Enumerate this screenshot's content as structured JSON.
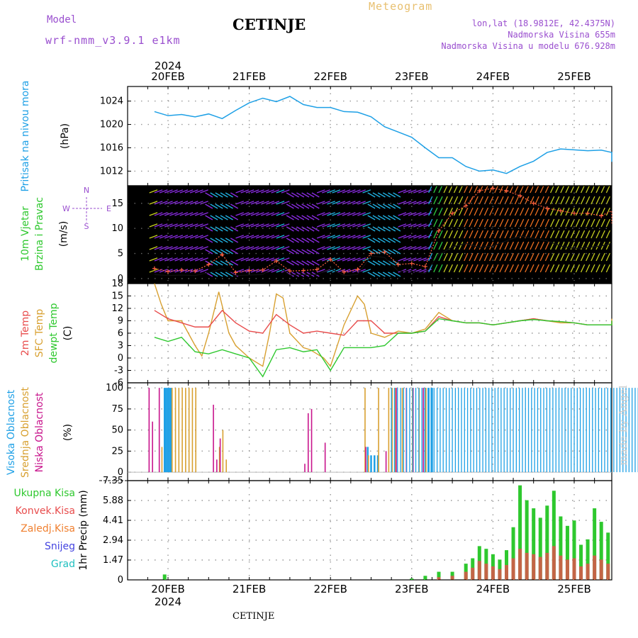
{
  "header": {
    "model_label": "Model",
    "model_name": "wrf-nmm_v3.9.1 e1km",
    "station": "CETINJE",
    "meteogram": "Meteogram",
    "lonlat": "lon,lat (18.9812E, 42.4375N)",
    "altitude": "Nadmorska Visina 655m",
    "model_altitude": "Nadmorska Visina u modelu 676.928m",
    "watermark": "made by Angel",
    "footer_station": "CETINJE"
  },
  "colors": {
    "pressure": "#1ea0e6",
    "temp2m": "#e84c4c",
    "sfc_temp": "#d8a030",
    "dewpt": "#2ec82e",
    "high_cloud": "#1ea0e6",
    "mid_cloud": "#d8a030",
    "low_cloud": "#c8148c",
    "total_precip": "#2ec82e",
    "conv_precip": "#e84c4c",
    "frozen": "#f08030",
    "snow": "#4444e0",
    "graupel": "#20c0c0",
    "purple_text": "#9a4fcf"
  },
  "time_axis": {
    "year": "2024",
    "dates": [
      "20FEB",
      "21FEB",
      "22FEB",
      "23FEB",
      "24FEB",
      "25FEB"
    ]
  },
  "panels": {
    "pressure": {
      "title": "Pritisak na nivou mora",
      "unit": "(hPa)",
      "ticks": [
        "1024",
        "1020",
        "1016",
        "1012"
      ]
    },
    "wind": {
      "title1": "10m Vjetar",
      "title2": "Brzina i Pravac",
      "unit": "(m/s)",
      "ticks": [
        "15",
        "10",
        "5",
        "0"
      ],
      "compass_n": "N",
      "compass_w": "W",
      "compass_e": "E",
      "compass_s": "S"
    },
    "temp": {
      "title1": "2m Temp",
      "title2": "SFC Temp",
      "title3": "dewpt Temp",
      "unit": "(C)",
      "ticks": [
        "18",
        "15",
        "12",
        "9",
        "6",
        "3",
        "0",
        "-3",
        "-6"
      ]
    },
    "cloud": {
      "title1": "Visoka Oblacnost",
      "title2": "Srednja Oblacnost",
      "title3": "Niska Oblacnost",
      "unit": "(%)",
      "ticks": [
        "100",
        "75",
        "50",
        "25",
        "0"
      ]
    },
    "precip": {
      "labels": [
        "Ukupna Kisa",
        "Konvek.Kisa",
        "Zaledj.Kisa",
        "Snijeg",
        "Grad"
      ],
      "unit": "1hr Precip (mm)",
      "ticks": [
        "7.35",
        "5.88",
        "4.41",
        "2.94",
        "1.47",
        "0"
      ]
    }
  },
  "chart_data": [
    {
      "type": "line",
      "title": "Pritisak na nivou mora",
      "ylabel": "(hPa)",
      "ylim": [
        1009.5,
        1026.5
      ],
      "x_unit": "hours since 20FEB 00UTC",
      "series": [
        {
          "name": "Pritisak na nivou mora",
          "x": [
            -4,
            0,
            4,
            8,
            12,
            16,
            20,
            24,
            28,
            32,
            36,
            40,
            44,
            48,
            52,
            56,
            60,
            64,
            68,
            72,
            76,
            80,
            84,
            88,
            92,
            96,
            100,
            104,
            108,
            112,
            116,
            124,
            128,
            132,
            136,
            140
          ],
          "y": [
            1022.2,
            1021.5,
            1021.7,
            1021.3,
            1021.8,
            1021.0,
            1022.4,
            1023.7,
            1024.5,
            1023.9,
            1024.8,
            1023.4,
            1022.9,
            1022.9,
            1022.2,
            1022.1,
            1021.3,
            1019.6,
            1018.7,
            1017.8,
            1016.0,
            1014.3,
            1014.3,
            1012.8,
            1012.0,
            1012.2,
            1011.6,
            1012.8,
            1013.7,
            1015.2,
            1015.8,
            1015.5,
            1015.6,
            1015.2,
            1014.6,
            1013.6
          ]
        }
      ],
      "grid": true
    },
    {
      "type": "line",
      "title": "10m Vjetar Brzina i Pravac",
      "ylabel": "(m/s)",
      "ylim": [
        -1,
        18.5
      ],
      "x_unit": "hours since 20FEB 00UTC",
      "series": [
        {
          "name": "speed",
          "x": [
            -4,
            0,
            4,
            8,
            12,
            16,
            20,
            24,
            28,
            32,
            36,
            40,
            44,
            48,
            52,
            56,
            60,
            64,
            68,
            72,
            76,
            80,
            84,
            88,
            92,
            96,
            100,
            104,
            108,
            112,
            116,
            120,
            124,
            128,
            132,
            136,
            140
          ],
          "y": [
            2.0,
            1.4,
            1.7,
            1.5,
            2.8,
            4.8,
            1.2,
            1.6,
            1.7,
            3.5,
            1.5,
            1.6,
            1.8,
            3.8,
            1.3,
            1.8,
            5.0,
            5.3,
            2.8,
            3.0,
            2.4,
            9.5,
            13.0,
            14.5,
            17.5,
            18.0,
            17.5,
            16.5,
            15.0,
            14.0,
            13.5,
            13.0,
            13.0,
            12.5,
            13.5,
            13.5,
            11.0
          ]
        },
        {
          "name": "gust",
          "x": [
            -4,
            0,
            4,
            8,
            12,
            16,
            20,
            24,
            28,
            32,
            36,
            40,
            44,
            48,
            52,
            56,
            60,
            64,
            68,
            72,
            76,
            80,
            84,
            88,
            92,
            96,
            100,
            104,
            108,
            112,
            116,
            120,
            124,
            128,
            132,
            136,
            140
          ],
          "y": [
            0.8,
            0.6,
            0.7,
            0.6,
            1.2,
            2.0,
            0.6,
            0.7,
            0.8,
            2.6,
            0.7,
            0.8,
            0.8,
            2.0,
            0.6,
            0.8,
            4.5,
            4.2,
            1.5,
            1.5,
            1.0,
            4.8,
            6.3,
            7.0,
            6.2,
            6.5,
            7.5,
            8.5,
            8.0,
            7.5,
            6.5,
            6.0,
            6.2,
            6.5,
            7.0,
            5.5,
            4.5
          ]
        }
      ],
      "grid": true
    },
    {
      "type": "line",
      "title": "2m Temp / SFC Temp / dewpt Temp",
      "ylabel": "(C)",
      "ylim": [
        -6,
        18
      ],
      "x_unit": "hours since 20FEB 00UTC",
      "series": [
        {
          "name": "2m Temp",
          "x": [
            -4,
            0,
            4,
            8,
            12,
            16,
            20,
            24,
            28,
            32,
            36,
            40,
            44,
            48,
            52,
            56,
            60,
            64,
            68,
            72,
            76,
            80,
            84,
            88,
            92,
            96,
            100,
            104,
            108,
            112,
            116,
            120,
            124,
            128,
            132,
            136,
            140
          ],
          "y": [
            11.5,
            9.5,
            8.5,
            7.5,
            7.5,
            11.5,
            8.5,
            6.5,
            6.0,
            10.5,
            8.0,
            6.0,
            6.5,
            6.0,
            5.5,
            9.0,
            9.0,
            6.0,
            6.0,
            6.0,
            6.5,
            10.0,
            9.0,
            8.5,
            8.5,
            8.0,
            8.5,
            9.0,
            9.5,
            9.0,
            8.8,
            8.5,
            8.0,
            8.0,
            8.0,
            8.0,
            9.0
          ]
        },
        {
          "name": "SFC Temp",
          "x": [
            -4,
            -2,
            0,
            4,
            8,
            10,
            12,
            15,
            18,
            20,
            24,
            28,
            30,
            32,
            34,
            36,
            40,
            42,
            44,
            46,
            48,
            52,
            56,
            58,
            60,
            62,
            64,
            68,
            72,
            76,
            80,
            84,
            88,
            92,
            96,
            100,
            104,
            108,
            112,
            116,
            120,
            124,
            128,
            132,
            136,
            140
          ],
          "y": [
            18.0,
            13.0,
            9.0,
            9.0,
            3.0,
            0.5,
            6.0,
            16.0,
            6.0,
            3.0,
            0.0,
            -2.0,
            6.0,
            15.5,
            14.5,
            6.0,
            2.5,
            2.0,
            1.0,
            0.0,
            -2.0,
            8.0,
            15.0,
            13.0,
            6.0,
            5.5,
            5.0,
            6.5,
            6.0,
            7.0,
            11.0,
            9.0,
            8.5,
            8.5,
            8.0,
            8.5,
            9.0,
            9.5,
            9.0,
            8.5,
            8.5,
            8.0,
            8.0,
            8.0,
            8.0,
            9.5
          ]
        },
        {
          "name": "dewpt Temp",
          "x": [
            -4,
            0,
            4,
            8,
            12,
            16,
            20,
            24,
            28,
            32,
            36,
            40,
            44,
            48,
            52,
            56,
            60,
            64,
            68,
            72,
            76,
            80,
            84,
            88,
            92,
            96,
            100,
            104,
            108,
            112,
            116,
            120,
            124,
            128,
            132,
            136,
            140
          ],
          "y": [
            5.0,
            4.0,
            5.0,
            1.5,
            1.0,
            2.0,
            1.0,
            0.0,
            -4.5,
            2.0,
            2.5,
            1.5,
            2.0,
            -3.0,
            2.5,
            2.5,
            2.5,
            3.0,
            6.0,
            6.0,
            6.5,
            9.5,
            9.0,
            8.5,
            8.5,
            8.0,
            8.5,
            9.0,
            9.3,
            9.0,
            8.8,
            8.5,
            8.0,
            8.0,
            8.0,
            8.0,
            9.0
          ]
        }
      ],
      "grid": true
    },
    {
      "type": "bar",
      "title": "Oblacnost",
      "ylabel": "(%)",
      "ylim": [
        0,
        100
      ],
      "x_unit": "hours since 20FEB 00UTC",
      "series": [
        {
          "name": "Visoka Oblacnost",
          "x": [
            -1,
            -0.5,
            0,
            0.5,
            1,
            59,
            60,
            61,
            62,
            76,
            77,
            78
          ],
          "y": [
            100,
            100,
            100,
            100,
            100,
            30,
            20,
            20,
            20,
            100,
            100,
            100
          ]
        },
        {
          "name": "Srednja Oblacnost",
          "x": [
            -2,
            1,
            2,
            3,
            4,
            5,
            6,
            7,
            8,
            15,
            16,
            17,
            58,
            59,
            62,
            65,
            66,
            67,
            69,
            72,
            74,
            76
          ],
          "y": [
            30,
            100,
            100,
            100,
            100,
            100,
            100,
            100,
            100,
            30,
            50,
            15,
            100,
            20,
            100,
            100,
            100,
            100,
            100,
            100,
            100,
            100
          ]
        },
        {
          "name": "Niska Oblacnost",
          "x": [
            -6,
            -5,
            -3,
            13,
            14,
            15,
            40,
            41,
            42,
            46,
            58,
            64,
            67,
            70,
            72,
            75
          ],
          "y": [
            100,
            60,
            100,
            80,
            15,
            40,
            10,
            70,
            75,
            35,
            30,
            25,
            100,
            100,
            100,
            100
          ]
        }
      ],
      "note": "From about 23FEB the cloud bars are 100% for all three levels through the end of the period.",
      "grid": true
    },
    {
      "type": "bar",
      "title": "1hr Precip",
      "ylabel": "1hr Precip (mm)",
      "ylim": [
        0,
        7.35
      ],
      "x_unit": "hours since 20FEB 00UTC",
      "series": [
        {
          "name": "Ukupna Kisa",
          "x": [
            -1,
            72,
            76,
            80,
            84,
            88,
            90,
            92,
            94,
            96,
            98,
            100,
            102,
            104,
            106,
            108,
            110,
            112,
            114,
            116,
            118,
            120,
            122,
            124,
            126,
            128,
            130,
            132,
            134,
            136,
            138,
            140
          ],
          "y": [
            0.4,
            0.1,
            0.3,
            0.6,
            0.6,
            1.2,
            1.6,
            2.5,
            2.3,
            1.9,
            1.5,
            2.2,
            3.9,
            7.0,
            5.9,
            5.3,
            4.6,
            5.5,
            6.6,
            4.7,
            4.0,
            4.4,
            2.6,
            3.0,
            5.3,
            4.3,
            3.5,
            2.9,
            0.6,
            0.6,
            0.6,
            0.4
          ]
        },
        {
          "name": "Konvek.Kisa",
          "x": [
            80,
            84,
            88,
            90,
            92,
            94,
            96,
            98,
            100,
            102,
            104,
            106,
            108,
            110,
            112,
            114,
            116,
            118,
            120,
            122,
            124,
            126,
            128,
            130,
            132
          ],
          "y": [
            0.2,
            0.3,
            0.6,
            0.9,
            1.4,
            1.2,
            1.0,
            0.8,
            1.1,
            1.6,
            2.3,
            2.0,
            1.9,
            1.7,
            2.0,
            2.5,
            1.8,
            1.5,
            1.6,
            1.0,
            1.2,
            1.8,
            1.5,
            1.2,
            1.1
          ]
        }
      ],
      "grid": true
    }
  ]
}
